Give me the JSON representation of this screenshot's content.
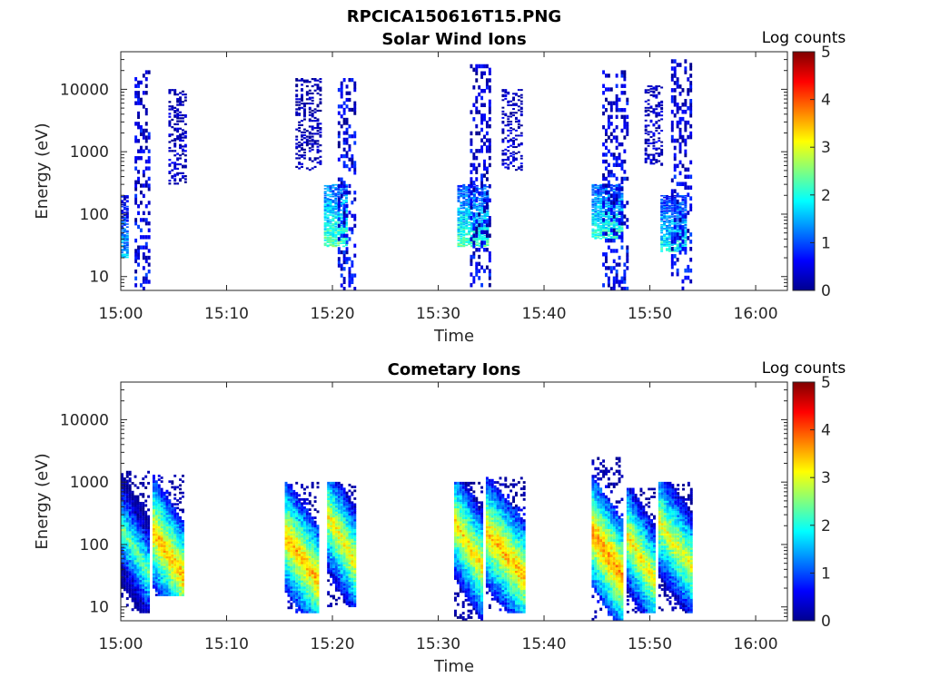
{
  "figure_title": "RPCICA150616T15.PNG",
  "chart_data": [
    {
      "type": "heatmap",
      "title": "Solar Wind Ions",
      "xlabel": "Time",
      "ylabel": "Energy (eV)",
      "x_ticks": [
        "15:00",
        "15:10",
        "15:20",
        "15:30",
        "15:40",
        "15:50",
        "16:00"
      ],
      "x_range": [
        "15:00",
        "16:03"
      ],
      "y_scale": "log",
      "y_ticks": [
        "10",
        "100",
        "1000",
        "10000"
      ],
      "y_range": [
        6,
        40000
      ],
      "colorbar": {
        "label": "Log counts",
        "range": [
          0,
          5
        ],
        "ticks": [
          "0",
          "1",
          "2",
          "3",
          "4",
          "5"
        ],
        "colormap": "jet"
      },
      "bursts": [
        {
          "t_start": "15:00.0",
          "t_end": "15:00.8",
          "e_low": 20,
          "e_high": 200,
          "log_counts": 1.6
        },
        {
          "t_start": "15:01.3",
          "t_end": "15:02.8",
          "e_low": 6,
          "e_high": 20000,
          "log_counts": 0.6
        },
        {
          "t_start": "15:04.5",
          "t_end": "15:06.3",
          "e_low": 300,
          "e_high": 10000,
          "log_counts": 0.3
        },
        {
          "t_start": "15:16.5",
          "t_end": "15:19.0",
          "e_low": 500,
          "e_high": 15000,
          "log_counts": 0.2
        },
        {
          "t_start": "15:19.2",
          "t_end": "15:21.5",
          "e_low": 30,
          "e_high": 300,
          "log_counts": 2.3
        },
        {
          "t_start": "15:20.5",
          "t_end": "15:22.3",
          "e_low": 6,
          "e_high": 15000,
          "log_counts": 0.6
        },
        {
          "t_start": "15:31.8",
          "t_end": "15:34.8",
          "e_low": 30,
          "e_high": 300,
          "log_counts": 2.2
        },
        {
          "t_start": "15:33.0",
          "t_end": "15:35.0",
          "e_low": 6,
          "e_high": 25000,
          "log_counts": 0.5
        },
        {
          "t_start": "15:36.0",
          "t_end": "15:38.0",
          "e_low": 500,
          "e_high": 10000,
          "log_counts": 0.3
        },
        {
          "t_start": "15:44.5",
          "t_end": "15:47.5",
          "e_low": 40,
          "e_high": 300,
          "log_counts": 2.2
        },
        {
          "t_start": "15:45.5",
          "t_end": "15:48.0",
          "e_low": 6,
          "e_high": 20000,
          "log_counts": 0.6
        },
        {
          "t_start": "15:49.5",
          "t_end": "15:51.2",
          "e_low": 600,
          "e_high": 12000,
          "log_counts": 0.3
        },
        {
          "t_start": "15:51.0",
          "t_end": "15:53.5",
          "e_low": 25,
          "e_high": 200,
          "log_counts": 2.0
        },
        {
          "t_start": "15:52.0",
          "t_end": "15:54.0",
          "e_low": 6,
          "e_high": 30000,
          "log_counts": 0.6
        }
      ]
    },
    {
      "type": "heatmap",
      "title": "Cometary Ions",
      "xlabel": "Time",
      "ylabel": "Energy (eV)",
      "x_ticks": [
        "15:00",
        "15:10",
        "15:20",
        "15:30",
        "15:40",
        "15:50",
        "16:00"
      ],
      "x_range": [
        "15:00",
        "16:03"
      ],
      "y_scale": "log",
      "y_ticks": [
        "10",
        "100",
        "1000",
        "10000"
      ],
      "y_range": [
        6,
        40000
      ],
      "colorbar": {
        "label": "Log counts",
        "range": [
          0,
          5
        ],
        "ticks": [
          "0",
          "1",
          "2",
          "3",
          "4",
          "5"
        ],
        "colormap": "jet"
      },
      "bursts": [
        {
          "t_start": "15:00.0",
          "t_end": "15:02.8",
          "e_low": 8,
          "e_high": 1500,
          "peak_energy": 80,
          "log_counts": 2.4
        },
        {
          "t_start": "15:03.0",
          "t_end": "15:06.0",
          "e_low": 15,
          "e_high": 1300,
          "peak_energy": 70,
          "log_counts": 3.5
        },
        {
          "t_start": "15:15.5",
          "t_end": "15:18.8",
          "e_low": 8,
          "e_high": 1000,
          "peak_energy": 60,
          "log_counts": 3.5
        },
        {
          "t_start": "15:19.5",
          "t_end": "15:22.3",
          "e_low": 10,
          "e_high": 1000,
          "peak_energy": 120,
          "log_counts": 3.2
        },
        {
          "t_start": "15:31.5",
          "t_end": "15:34.3",
          "e_low": 6,
          "e_high": 1000,
          "peak_energy": 100,
          "log_counts": 3.3
        },
        {
          "t_start": "15:34.5",
          "t_end": "15:38.2",
          "e_low": 8,
          "e_high": 1200,
          "peak_energy": 70,
          "log_counts": 3.5
        },
        {
          "t_start": "15:44.5",
          "t_end": "15:47.5",
          "e_low": 6,
          "e_high": 2500,
          "peak_energy": 70,
          "log_counts": 3.7
        },
        {
          "t_start": "15:47.8",
          "t_end": "15:50.5",
          "e_low": 8,
          "e_high": 800,
          "peak_energy": 60,
          "log_counts": 3.2
        },
        {
          "t_start": "15:50.8",
          "t_end": "15:54.0",
          "e_low": 8,
          "e_high": 1000,
          "peak_energy": 100,
          "log_counts": 3.1
        }
      ]
    }
  ]
}
